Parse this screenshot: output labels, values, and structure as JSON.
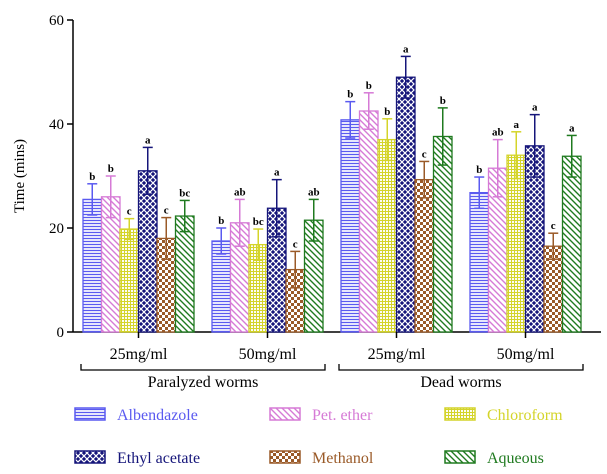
{
  "chart_data": {
    "type": "bar",
    "ylabel": "Time (mins)",
    "ylim": [
      0,
      60
    ],
    "yticks": [
      "0",
      "20",
      "40",
      "60"
    ],
    "grid": false,
    "legend_position": "bottom",
    "groups": [
      {
        "label": "Paralyzed worms",
        "categories": [
          {
            "label": "25mg/ml",
            "values": [
              25.5,
              26.0,
              19.8,
              31.0,
              18.0,
              22.3
            ],
            "errors": [
              3.0,
              4.0,
              2.0,
              4.5,
              4.0,
              3.0
            ],
            "letters": [
              "b",
              "b",
              "c",
              "a",
              "c",
              "bc"
            ]
          },
          {
            "label": "50mg/ml",
            "values": [
              17.5,
              21.0,
              16.8,
              23.8,
              12.0,
              21.5
            ],
            "errors": [
              2.5,
              4.5,
              3.0,
              5.5,
              3.5,
              4.0
            ],
            "letters": [
              "b",
              "ab",
              "bc",
              "a",
              "c",
              "ab"
            ]
          }
        ]
      },
      {
        "label": "Dead worms",
        "categories": [
          {
            "label": "25mg/ml",
            "values": [
              40.8,
              42.5,
              37.0,
              49.0,
              29.3,
              37.6
            ],
            "errors": [
              3.5,
              3.5,
              4.0,
              4.0,
              3.5,
              5.5
            ],
            "letters": [
              "b",
              "b",
              "b",
              "a",
              "c",
              "b"
            ]
          },
          {
            "label": "50mg/ml",
            "values": [
              26.8,
              31.5,
              34.0,
              35.8,
              16.5,
              33.8
            ],
            "errors": [
              3.0,
              5.5,
              4.5,
              6.0,
              2.5,
              4.0
            ],
            "letters": [
              "b",
              "ab",
              "a",
              "a",
              "c",
              "a"
            ]
          }
        ]
      }
    ],
    "series": [
      {
        "name": "Albendazole",
        "color": "#5a5af0",
        "pattern": "horizontal-lines"
      },
      {
        "name": "Pet. ether",
        "color": "#d67ad6",
        "pattern": "diagonal-lines"
      },
      {
        "name": "Chloroform",
        "color": "#d4d42a",
        "pattern": "grid"
      },
      {
        "name": "Ethyl acetate",
        "color": "#15157a",
        "pattern": "crosshatch"
      },
      {
        "name": "Methanol",
        "color": "#9a5a28",
        "pattern": "checker"
      },
      {
        "name": "Aqueous",
        "color": "#1f7a1f",
        "pattern": "diagonal-lines"
      }
    ]
  }
}
